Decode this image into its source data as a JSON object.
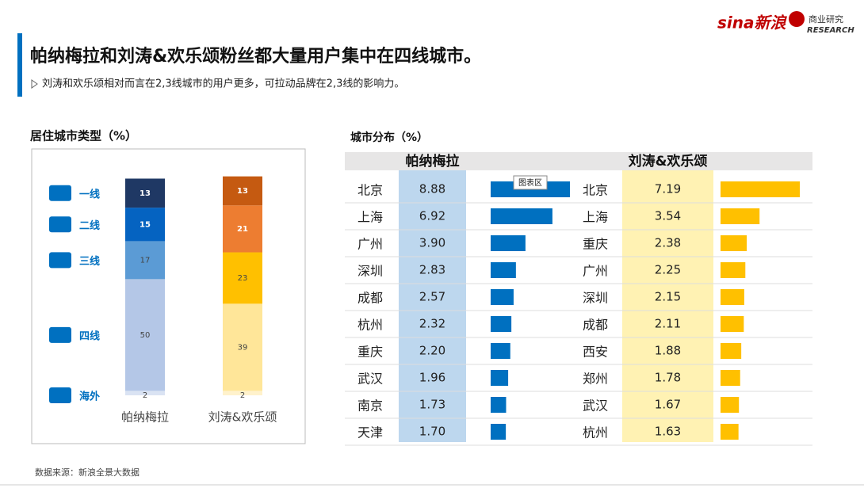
{
  "header": {
    "title": "帕纳梅拉和刘涛&欢乐颂粉丝都大量用户集中在四线城市。",
    "subtitle": "刘涛和欢乐颂相对而言在2,3线城市的用户更多，可拉动品牌在2,3线的影响力。",
    "logos": [
      "sina新浪",
      "商业研究",
      "RESEARCH"
    ]
  },
  "source": "数据来源：新浪全景大数据",
  "chart_data": [
    {
      "type": "stacked_bar",
      "title": "居住城市类型（%）",
      "categories": [
        "帕纳梅拉",
        "刘涛&欢乐颂"
      ],
      "series": [
        {
          "name": "一线",
          "colors": [
            "#1f3864",
            "#c55a11"
          ],
          "values": [
            13,
            13
          ]
        },
        {
          "name": "二线",
          "colors": [
            "#0563c1",
            "#ed7d31"
          ],
          "values": [
            15,
            21
          ]
        },
        {
          "name": "三线",
          "colors": [
            "#5b9bd5",
            "#ffc000"
          ],
          "values": [
            17,
            23
          ]
        },
        {
          "name": "四线",
          "colors": [
            "#b4c7e7",
            "#ffe699"
          ],
          "values": [
            50,
            39
          ]
        },
        {
          "name": "海外",
          "colors": [
            "#dae3f3",
            "#fff2cc"
          ],
          "values": [
            2,
            2
          ]
        }
      ]
    },
    {
      "type": "bar",
      "title": "城市分布（%）",
      "name": "帕纳梅拉",
      "color": "#0070c0",
      "highlight": "#bdd7ee",
      "categories": [
        "北京",
        "上海",
        "广州",
        "深圳",
        "成都",
        "杭州",
        "重庆",
        "武汉",
        "南京",
        "天津"
      ],
      "values": [
        8.88,
        6.92,
        3.9,
        2.83,
        2.57,
        2.32,
        2.2,
        1.96,
        1.73,
        1.7
      ],
      "value_labels": [
        "8.88",
        "6.92",
        "3.90",
        "2.83",
        "2.57",
        "2.32",
        "2.20",
        "1.96",
        "1.73",
        "1.70"
      ],
      "annotation": "图表区"
    },
    {
      "type": "bar",
      "name": "刘涛&欢乐颂",
      "color": "#ffc000",
      "highlight": "#fff2b3",
      "categories": [
        "北京",
        "上海",
        "重庆",
        "广州",
        "深圳",
        "成都",
        "西安",
        "郑州",
        "武汉",
        "杭州"
      ],
      "values": [
        7.19,
        3.54,
        2.38,
        2.25,
        2.15,
        2.11,
        1.88,
        1.78,
        1.67,
        1.63
      ]
    }
  ]
}
